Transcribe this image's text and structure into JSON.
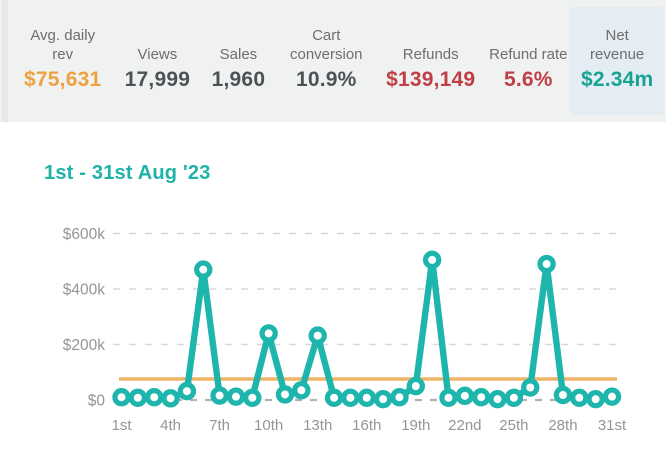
{
  "header": {
    "background": "#f0f1f1",
    "cards": [
      {
        "label": "Avg. daily rev",
        "value": "$75,631",
        "color": "#efa13f",
        "highlighted": false
      },
      {
        "label": "Views",
        "value": "17,999",
        "color": "#4e5256",
        "highlighted": false
      },
      {
        "label": "Sales",
        "value": "1,960",
        "color": "#4e5256",
        "highlighted": false
      },
      {
        "label": "Cart conversion",
        "value": "10.9%",
        "color": "#4e5256",
        "highlighted": false
      },
      {
        "label": "Refunds",
        "value": "$139,149",
        "color": "#c03e45",
        "highlighted": false
      },
      {
        "label": "Refund rate",
        "value": "5.6%",
        "color": "#c03e45",
        "highlighted": false
      },
      {
        "label": "Net revenue",
        "value": "$2.34m",
        "color": "#16a392",
        "highlighted": true,
        "highlight_bg": "#e4edf4"
      }
    ]
  },
  "chart_data": {
    "type": "line",
    "title": "1st - 31st Aug '23",
    "title_color": "#1eb2a9",
    "series_color": "#1db5ac",
    "marker": "open-circle",
    "x": [
      1,
      2,
      3,
      4,
      5,
      6,
      7,
      8,
      9,
      10,
      11,
      12,
      13,
      14,
      15,
      16,
      17,
      18,
      19,
      20,
      21,
      22,
      23,
      24,
      25,
      26,
      27,
      28,
      29,
      30,
      31
    ],
    "values": [
      10000,
      8000,
      10000,
      6000,
      32000,
      470000,
      16000,
      12000,
      8000,
      240000,
      20000,
      35000,
      232000,
      8000,
      8000,
      8000,
      3000,
      10000,
      50000,
      505000,
      8000,
      15000,
      10000,
      3000,
      8000,
      45000,
      490000,
      18000,
      8000,
      3000,
      12000
    ],
    "ylim": [
      0,
      650000
    ],
    "y_ticks": [
      {
        "value": 600000,
        "label": "$600k"
      },
      {
        "value": 400000,
        "label": "$400k"
      },
      {
        "value": 200000,
        "label": "$200k"
      },
      {
        "value": 0,
        "label": "$0"
      }
    ],
    "x_ticks": [
      {
        "value": 1,
        "label": "1st"
      },
      {
        "value": 4,
        "label": "4th"
      },
      {
        "value": 7,
        "label": "7th"
      },
      {
        "value": 10,
        "label": "10th"
      },
      {
        "value": 13,
        "label": "13th"
      },
      {
        "value": 16,
        "label": "16th"
      },
      {
        "value": 19,
        "label": "19th"
      },
      {
        "value": 22,
        "label": "22nd"
      },
      {
        "value": 25,
        "label": "25th"
      },
      {
        "value": 28,
        "label": "28th"
      },
      {
        "value": 31,
        "label": "31st"
      }
    ],
    "grid": "horizontal-dashed",
    "gridline_color": "#d9d9d9",
    "zero_line_color": "#b2b2b2",
    "tick_label_color": "#959595",
    "reference_line": {
      "value": 75631,
      "color": "#eeb46a"
    },
    "legend": "none"
  }
}
